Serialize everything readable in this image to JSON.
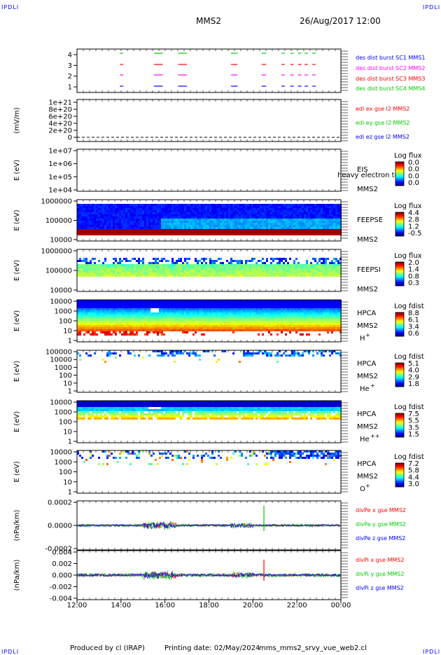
{
  "header": {
    "mission": "MMS2",
    "datetime": "26/Aug/2017 12:00",
    "corner_tag": "IPDLI"
  },
  "footer": {
    "produced_by": "Produced by cl (IRAP)",
    "printing_date": "Printing date: 02/May/2024",
    "filename": "mms_mms2_srvy_vue_web2.cl"
  },
  "chart_data": {
    "type": "multi-panel time-series / spectrogram",
    "x_ticks": [
      "12:00",
      "14:00",
      "16:00",
      "18:00",
      "20:00",
      "22:00",
      "00:00"
    ],
    "colors": {
      "red": "#ff0000",
      "green": "#00cc00",
      "blue": "#0000ff",
      "magenta": "#ff00ff"
    },
    "panels": [
      {
        "id": "burst",
        "type": "timeline",
        "yticks": [
          "1",
          "2",
          "3",
          "4"
        ],
        "legend": [
          {
            "text": "des dist burst SC1 MMS1",
            "color": "#0000ff"
          },
          {
            "text": "des dist burst SC2 MMS2",
            "color": "#ff00ff"
          },
          {
            "text": "des dist burst SC3 MMS3",
            "color": "#ff0000"
          },
          {
            "text": "des dist burst SC4 MMS4",
            "color": "#00cc00"
          }
        ],
        "segments_hours": [
          [
            13.95,
            14.1
          ],
          [
            15.5,
            15.9
          ],
          [
            16.6,
            17.0
          ],
          [
            19.0,
            19.3
          ],
          [
            20.4,
            20.6
          ],
          [
            21.3,
            21.45
          ],
          [
            21.7,
            21.85
          ],
          [
            22.05,
            22.2
          ],
          [
            22.35,
            22.5
          ],
          [
            22.7,
            22.85
          ]
        ]
      },
      {
        "id": "edi",
        "type": "line",
        "ylabel": "(mV/m)",
        "yticks": [
          "1e+21",
          "8e+20",
          "6e+20",
          "4e+20",
          "2e+20",
          "0"
        ],
        "legend": [
          {
            "text": "edi ex gse l2 MMS2",
            "color": "#ff0000"
          },
          {
            "text": "edi ey gse l2 MMS2",
            "color": "#00cc00"
          },
          {
            "text": "edi ez gse l2 MMS2",
            "color": "#0000ff"
          }
        ]
      },
      {
        "id": "eis",
        "type": "spectrogram",
        "ylabel": "E (eV)",
        "yticks": [
          "1e+07",
          "1e+06",
          "1e+05",
          "1e+04"
        ],
        "label1": "EIS",
        "label_overlap": "heavy electron tof",
        "label2": "MMS2",
        "cb_title": "Log flux",
        "cb_ticks": [
          "0.0",
          "0.0",
          "0.0",
          "0.0"
        ]
      },
      {
        "id": "feepse",
        "type": "spectrogram",
        "ylabel": "E (eV)",
        "yticks": [
          "1000000",
          "100000",
          "10000"
        ],
        "label1": "FEEPSE",
        "label2": "MMS2",
        "cb_title": "Log flux",
        "cb_ticks": [
          "4.4",
          "2.8",
          "1.2",
          "-0.5"
        ]
      },
      {
        "id": "feepsi",
        "type": "spectrogram",
        "ylabel": "E (eV)",
        "yticks": [
          "1000000",
          "100000",
          "10000"
        ],
        "label1": "FEEPSI",
        "label2": "MMS2",
        "cb_title": "Log flux",
        "cb_ticks": [
          "2.0",
          "1.4",
          "0.8",
          "0.3"
        ]
      },
      {
        "id": "hpca_h",
        "type": "spectrogram",
        "ylabel": "E (eV)",
        "yticks": [
          "10000",
          "1000",
          "100",
          "10",
          "1"
        ],
        "label1": "HPCA",
        "label2": "MMS2",
        "species": "H",
        "charge": "+",
        "cb_title": "Log fdist",
        "cb_ticks": [
          "8.8",
          "6.1",
          "3.4",
          "0.6"
        ]
      },
      {
        "id": "hpca_he1",
        "type": "spectrogram",
        "ylabel": "E (eV)",
        "yticks": [
          "100000",
          "10000",
          "1000",
          "100",
          "10",
          "1"
        ],
        "label1": "HPCA",
        "label2": "MMS2",
        "species": "He",
        "charge": "+",
        "cb_title": "Log fdist",
        "cb_ticks": [
          "5.1",
          "4.0",
          "2.9",
          "1.8"
        ]
      },
      {
        "id": "hpca_he2",
        "type": "spectrogram",
        "ylabel": "E (eV)",
        "yticks": [
          "10000",
          "1000",
          "100",
          "10",
          "1"
        ],
        "label1": "HPCA",
        "label2": "MMS2",
        "species": "He",
        "charge": "++",
        "cb_title": "Log fdist",
        "cb_ticks": [
          "7.5",
          "5.5",
          "3.5",
          "1.5"
        ]
      },
      {
        "id": "hpca_o",
        "type": "spectrogram",
        "ylabel": "E (eV)",
        "yticks": [
          "10000",
          "1000",
          "100",
          "10",
          "1"
        ],
        "label1": "HPCA",
        "label2": "MMS2",
        "species": "O",
        "charge": "+",
        "cb_title": "Log fdist",
        "cb_ticks": [
          "7.2",
          "5.8",
          "4.4",
          "3.0"
        ]
      },
      {
        "id": "divpe",
        "type": "line",
        "ylabel": "(nPa/km)",
        "yticks": [
          "0.0002",
          "0.0000",
          "-0.0002"
        ],
        "legend": [
          {
            "text": "divPe x gse MMS2",
            "color": "#ff0000"
          },
          {
            "text": "divPe y gse MMS2",
            "color": "#00cc00"
          },
          {
            "text": "divPe z gse MMS2",
            "color": "#0000ff"
          }
        ]
      },
      {
        "id": "divpi",
        "type": "line",
        "ylabel": "(nPa/km)",
        "yticks": [
          "0.004",
          "0.002",
          "0.000",
          "-0.002",
          "-0.004"
        ],
        "legend": [
          {
            "text": "divPi x gse MMS2",
            "color": "#ff0000"
          },
          {
            "text": "divPi y gse MMS2",
            "color": "#00cc00"
          },
          {
            "text": "divPi z gse MMS2",
            "color": "#0000ff"
          }
        ]
      }
    ]
  }
}
